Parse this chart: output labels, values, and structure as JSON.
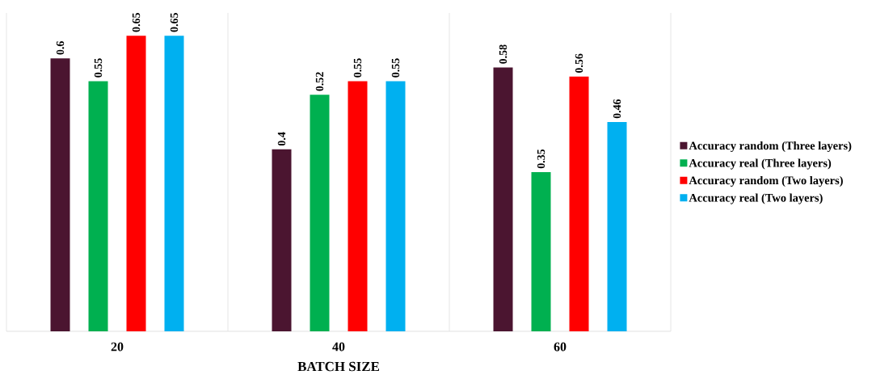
{
  "chart_data": {
    "type": "bar",
    "xlabel": "BATCH SIZE",
    "categories": [
      "20",
      "40",
      "60"
    ],
    "series": [
      {
        "name": "Accuracy random (Three layers)",
        "color": "#4b1530",
        "values": [
          0.6,
          0.4,
          0.58
        ],
        "value_labels": [
          "0.6",
          "0.4",
          "0.58"
        ]
      },
      {
        "name": "Accuracy real (Three layers)",
        "color": "#00b050",
        "values": [
          0.55,
          0.52,
          0.35
        ],
        "value_labels": [
          "0.55",
          "0.52",
          "0.35"
        ]
      },
      {
        "name": "Accuracy random (Two layers)",
        "color": "#ff0000",
        "values": [
          0.65,
          0.55,
          0.56
        ],
        "value_labels": [
          "0.65",
          "0.55",
          "0.56"
        ]
      },
      {
        "name": "Accuracy real (Two layers)",
        "color": "#00b0f0",
        "values": [
          0.65,
          0.55,
          0.46
        ],
        "value_labels": [
          "0.65",
          "0.55",
          "0.46"
        ]
      }
    ],
    "ylim": [
      0,
      0.7
    ],
    "tick_labels": "x",
    "legend": "right",
    "grid": false
  }
}
